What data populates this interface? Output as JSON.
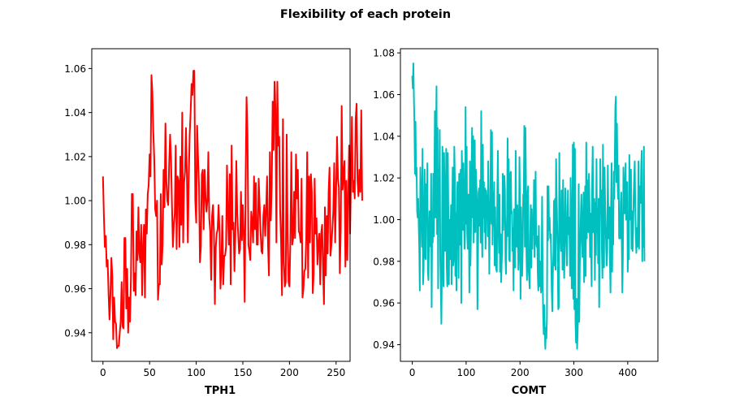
{
  "figure": {
    "title": "Flexibility of each protein"
  },
  "chart_data": [
    {
      "type": "line",
      "title": "",
      "xlabel": "TPH1",
      "ylabel": "",
      "xlim": [
        -12,
        265
      ],
      "ylim": [
        0.927,
        1.069
      ],
      "xticks": [
        0,
        50,
        100,
        150,
        200,
        250
      ],
      "yticks": [
        0.94,
        0.96,
        0.98,
        1.0,
        1.02,
        1.04,
        1.06
      ],
      "ytick_decimals": 2,
      "grid": false,
      "legend": "none",
      "color": "#ff0000",
      "series": [
        {
          "name": "",
          "x_start": 0,
          "values": [
            1.011,
            0.993,
            0.979,
            0.984,
            0.97,
            0.973,
            0.958,
            0.946,
            0.957,
            0.974,
            0.966,
            0.937,
            0.956,
            0.945,
            0.944,
            0.933,
            0.934,
            0.934,
            0.94,
            0.945,
            0.963,
            0.943,
            0.942,
            0.983,
            0.983,
            0.951,
            0.969,
            0.94,
            0.956,
            0.945,
            0.965,
            1.003,
            1.003,
            0.959,
            0.967,
            0.957,
            0.986,
            0.973,
            0.997,
            0.976,
            0.972,
            0.989,
            0.957,
            0.979,
            0.989,
            0.956,
            0.996,
            0.985,
            1.003,
            1.007,
            1.021,
            1.011,
            1.057,
            1.049,
            1.031,
            1.019,
            0.996,
            0.993,
            1.0,
            0.955,
            0.962,
            0.962,
            1.003,
            0.971,
            0.98,
            1.014,
            0.997,
            1.035,
            1.009,
            1.0,
            0.998,
            1.017,
            1.03,
            1.019,
            0.998,
            0.979,
            0.989,
            0.994,
            1.025,
            0.978,
            1.011,
            1.009,
            0.979,
            1.02,
            0.989,
            1.04,
            0.981,
            1.008,
            1.013,
            1.033,
            1.012,
            0.981,
            1.01,
            1.03,
            1.04,
            1.053,
            1.048,
            1.059,
            1.059,
            1.0,
            0.99,
            1.034,
            1.019,
            1.007,
            0.972,
            0.979,
            1.012,
            1.014,
            0.987,
            1.014,
            1.002,
            0.995,
            1.0,
            1.022,
            0.992,
            0.986,
            0.964,
            0.993,
            0.998,
            0.986,
            0.953,
            0.979,
            0.985,
            0.987,
            0.998,
            0.986,
            0.96,
            0.971,
            0.993,
            0.962,
            0.975,
            0.975,
            0.979,
            1.016,
            0.994,
            0.98,
            1.012,
            0.962,
            1.025,
            0.987,
            0.99,
            0.968,
            0.985,
            1.018,
            0.994,
            0.985,
            0.976,
            0.978,
            1.004,
            0.982,
            0.998,
            0.984,
            0.954,
            1.01,
            1.047,
            1.03,
            0.98,
            0.977,
            0.973,
            0.995,
            0.991,
            0.981,
            1.011,
            0.987,
            1.008,
            0.98,
            0.98,
            1.01,
            0.998,
            0.986,
            0.977,
            0.976,
            0.993,
            0.998,
            0.984,
            0.996,
            1.011,
            0.98,
            0.966,
            1.022,
            0.991,
            1.007,
            1.045,
            1.023,
            1.054,
            1.042,
            0.981,
            1.054,
            1.025,
            1.029,
            0.996,
            0.981,
            0.957,
            1.037,
            0.972,
            0.961,
            0.963,
            1.03,
            0.986,
            0.963,
            0.961,
            0.982,
            1.022,
            0.98,
            0.983,
            1.004,
            0.983,
            1.021,
            1.001,
            1.014,
            0.986,
            0.985,
            0.981,
            1.01,
            0.956,
            0.96,
            0.968,
            0.969,
            0.983,
            1.022,
            0.965,
            1.011,
            0.981,
            1.012,
            1.004,
            0.958,
            0.967,
            1.01,
            0.985,
            0.992,
            0.971,
            0.981,
            0.985,
            0.962,
            0.985,
            0.989,
            0.969,
            0.953,
            0.997,
            0.966,
            0.993,
            0.976,
            1.004,
            1.015,
            0.975,
            0.98,
            0.987,
            0.995,
            1.017,
            0.981,
            1.004,
            1.029,
            1.01,
            1.006,
            0.967,
            0.987,
            1.043,
            1.005,
            1.012,
            1.018,
            0.97,
            1.009,
            0.973,
            1.002,
            1.025,
            0.985,
            1.01,
            1.038,
            1.004,
            1.009,
            1.001,
            1.037,
            1.044,
            1.009,
            1.002,
            1.014,
            1.004,
            1.041,
            1.0
          ]
        }
      ]
    },
    {
      "type": "line",
      "title": "",
      "xlabel": "COMT",
      "ylabel": "",
      "xlim": [
        -22,
        456
      ],
      "ylim": [
        0.932,
        1.082
      ],
      "xticks": [
        0,
        100,
        200,
        300,
        400
      ],
      "yticks": [
        0.94,
        0.96,
        0.98,
        1.0,
        1.02,
        1.04,
        1.06,
        1.08
      ],
      "ytick_decimals": 2,
      "grid": false,
      "legend": "none",
      "color": "#00bfbf",
      "series": [
        {
          "name": "",
          "x_start": 0,
          "values": [
            1.069,
            1.063,
            1.075,
            1.059,
            1.046,
            1.022,
            1.047,
            1.021,
            1.025,
            1.004,
            1.001,
            1.01,
            0.997,
            0.986,
            0.966,
            1.025,
            1.014,
            1.003,
            0.987,
            1.034,
            0.969,
            0.976,
            1.001,
            1.024,
            0.982,
            0.981,
            1.017,
            1.007,
            1.027,
            0.975,
            0.971,
            0.992,
            1.004,
            0.989,
            0.987,
            1.022,
            0.958,
            1.001,
            0.989,
            1.022,
            0.992,
            1.019,
            1.052,
            1.001,
            1.039,
            1.064,
            0.993,
            1.044,
            0.967,
            1.024,
            1.007,
            1.043,
            0.98,
            0.967,
            0.95,
            0.976,
            1.035,
            1.011,
            0.968,
            1.032,
            1.016,
            0.985,
            0.988,
            1.034,
            0.977,
            0.968,
            1.032,
            1.003,
            0.969,
            1.0,
            0.981,
            0.993,
            1.007,
            0.969,
            0.997,
            1.025,
            0.978,
            0.981,
            1.035,
            1.021,
            0.973,
            1.003,
            0.966,
            1.012,
            1.018,
            0.998,
            0.972,
            1.022,
            0.988,
            1.016,
            1.024,
            0.96,
            1.033,
            1.016,
            0.995,
            1.027,
            1.005,
            0.986,
            0.995,
            1.054,
            0.998,
            1.035,
            0.993,
            0.986,
            1.012,
            0.998,
            0.965,
            1.028,
            0.978,
            0.995,
            1.021,
            1.044,
            1.001,
            1.04,
            0.989,
            1.009,
            1.038,
            0.994,
            1.024,
            1.017,
            1.008,
            0.957,
            0.981,
            1.013,
            1.015,
            0.997,
            1.019,
            0.989,
            1.052,
            0.997,
            0.982,
            1.036,
            1.001,
            1.018,
            0.994,
            1.015,
            0.986,
            1.014,
            1.009,
            1.01,
            0.992,
            1.028,
            1.006,
            0.974,
            1.003,
            1.009,
            1.043,
            0.998,
            1.042,
            0.988,
            1.013,
            0.997,
            1.018,
            0.978,
            1.006,
            0.981,
            0.976,
            0.975,
            1.015,
            1.033,
            1.0,
            0.984,
            1.012,
            0.975,
            0.993,
            0.97,
            0.979,
            0.986,
            1.022,
            0.995,
            1.006,
            1.021,
            1.014,
            0.981,
            0.974,
            0.992,
            1.002,
            1.039,
            0.992,
            1.029,
            0.981,
            0.98,
            1.022,
            1.023,
            1.003,
            1.004,
            0.985,
            0.996,
            0.966,
            1.005,
            0.995,
            0.977,
            1.033,
            0.99,
            0.987,
            1.007,
            1.002,
            0.976,
            0.984,
            1.03,
            1.007,
            0.962,
            1.006,
            0.983,
            0.973,
            0.986,
            1.012,
            1.012,
            1.045,
            0.987,
            1.044,
            1.021,
            0.983,
            0.971,
            1.012,
            1.016,
            0.976,
            0.972,
            0.967,
            0.992,
            1.007,
            0.977,
            1.005,
            0.986,
            1.001,
            0.993,
            1.019,
            0.982,
            1.007,
            1.023,
            0.989,
            0.987,
            0.992,
            0.974,
            0.966,
            0.997,
            0.968,
            0.976,
            0.98,
            0.965,
            0.969,
            1.011,
            0.975,
            0.954,
            0.945,
            0.959,
            0.947,
            0.938,
            0.948,
            0.943,
            0.953,
            1.016,
            0.99,
            1.016,
            0.995,
            1.001,
            0.991,
            0.993,
            0.981,
            0.965,
            0.956,
            0.974,
            0.984,
            1.009,
            0.978,
            1.01,
            0.976,
            1.029,
            1.012,
            0.998,
            0.984,
            0.957,
            0.958,
            1.032,
            0.996,
            0.993,
            0.985,
            1.014,
            0.998,
            0.976,
            1.019,
            0.987,
            0.972,
            0.989,
            1.015,
            1.007,
            0.99,
            0.978,
            0.993,
            1.014,
            0.993,
            1.001,
            0.991,
            0.973,
            1.02,
            1.002,
            0.967,
            0.972,
            1.036,
            0.962,
            1.037,
            0.957,
            1.034,
            0.951,
            0.941,
            0.962,
            0.938,
            0.946,
            0.958,
            1.017,
            0.951,
            0.978,
            0.988,
            1.003,
            1.012,
            0.992,
            0.982,
            0.996,
            1.013,
            0.97,
            0.995,
            1.016,
            0.973,
            1.037,
            0.991,
            1.019,
            1.015,
            0.994,
            1.022,
            1.008,
            0.982,
            1.003,
            0.986,
            0.968,
            1.019,
            1.035,
            0.994,
            0.998,
            1.01,
            0.971,
            1.008,
            0.983,
            1.029,
            0.994,
            1.005,
            0.979,
            1.01,
            0.958,
            0.993,
            1.029,
            1.003,
            1.014,
            0.986,
            0.972,
            1.036,
            0.993,
            0.977,
            1.025,
            1.009,
            0.998,
            0.986,
            0.978,
            0.985,
            1.026,
            1.001,
            0.991,
            1.006,
            0.979,
            0.965,
            1.006,
            1.027,
            0.975,
            1.001,
            0.988,
            1.023,
            1.01,
            1.03,
            1.054,
            1.059,
            1.018,
            1.046,
            1.021,
            1.01,
            1.026,
            0.991,
            1.001,
            0.991,
            1.008,
            1.013,
            0.988,
            0.965,
            0.983,
            1.025,
            1.017,
            1.003,
            1.005,
            1.027,
            1.0,
            1.004,
            1.018,
            0.975,
            0.988,
            0.981,
            1.031,
            1.0,
            1.016,
            1.024,
            0.986,
            1.004,
            0.985,
            0.995,
            1.011,
            1.02,
            1.028,
            1.006,
            0.993,
            0.984,
            0.996,
            0.987,
            0.999,
            1.028,
            0.986,
            1.008,
            1.016,
            1.008,
            1.025,
            1.033,
            0.98,
            1.007,
            0.987,
            1.035,
            0.98
          ]
        }
      ]
    }
  ]
}
